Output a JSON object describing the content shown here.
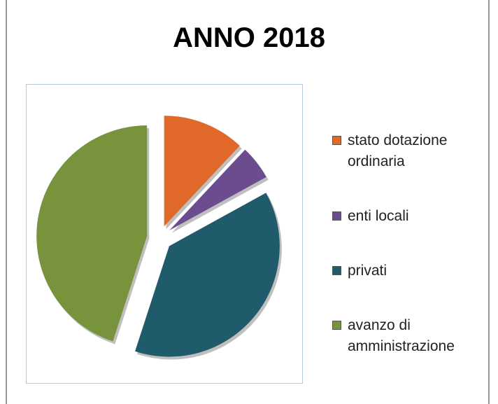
{
  "chart_data": {
    "type": "pie",
    "title": "ANNO 2018",
    "categories": [
      "stato dotazione ordinaria",
      "enti locali",
      "privati",
      "avanzo di amministrazione"
    ],
    "values": [
      12,
      5,
      38,
      45
    ],
    "colors": [
      "#e0692a",
      "#6b4c8f",
      "#1f5b6b",
      "#77933c"
    ]
  }
}
